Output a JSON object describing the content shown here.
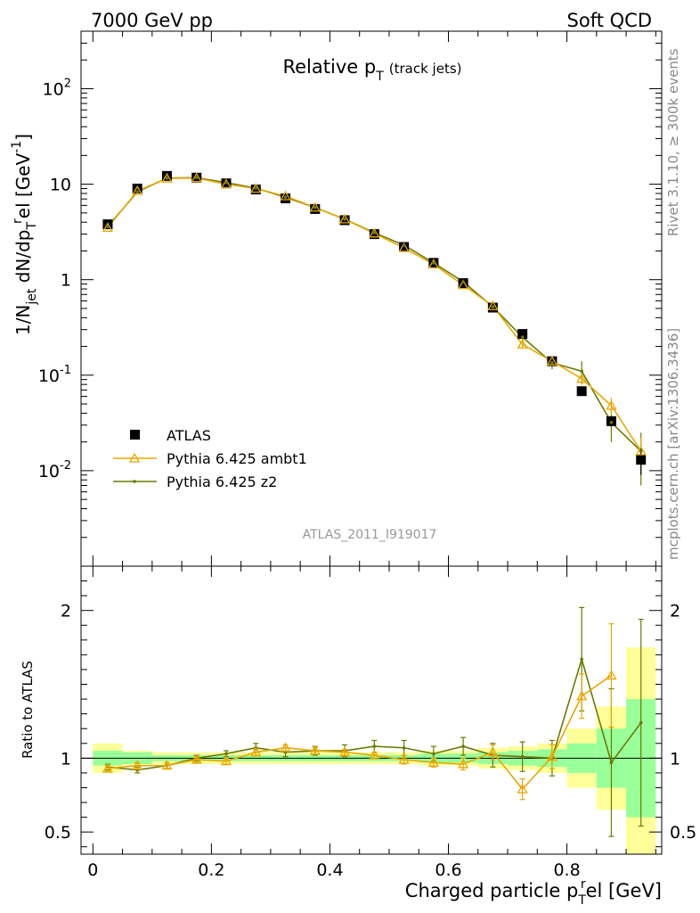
{
  "header": {
    "left": "7000 GeV pp",
    "right": "Soft QCD"
  },
  "side": {
    "rivet": "Rivet 3.1.10, ≥ 300k events",
    "mcplots": "mcplots.cern.ch [arXiv:1306.3436]"
  },
  "chart_data": {
    "type": "line",
    "title": "Relative p",
    "title_sub": "T",
    "title_suffix": "(track jets)",
    "analysis_id": "ATLAS_2011_I919017",
    "xlabel": "Charged particle p",
    "xlabel_sub": "T",
    "xlabel_sup": "r",
    "xlabel_suffix": "el [GeV]",
    "ylabel_parts": [
      "1/N",
      "jet",
      " dN/dp",
      "T",
      "r",
      "el [GeV",
      "-1",
      "]"
    ],
    "ratio_ylabel": "Ratio to ATLAS",
    "xlim": [
      -0.02,
      0.96
    ],
    "ylim": [
      0.001,
      400
    ],
    "yscale": "log",
    "ratio_ylim": [
      0.35,
      2.3
    ],
    "x_ticks": [
      0,
      0.2,
      0.4,
      0.6,
      0.8
    ],
    "x_tick_labels": [
      "0",
      "0.2",
      "0.4",
      "0.6",
      "0.8"
    ],
    "y_tick_labels": [
      {
        "value": 0.01,
        "base": "10",
        "exp": "-2"
      },
      {
        "value": 0.1,
        "base": "10",
        "exp": "-1"
      },
      {
        "value": 1,
        "base": "1",
        "exp": ""
      },
      {
        "value": 10,
        "base": "10",
        "exp": ""
      },
      {
        "value": 100,
        "base": "10",
        "exp": "2"
      }
    ],
    "ratio_ticks": [
      {
        "value": 0.5,
        "label": "0.5"
      },
      {
        "value": 1,
        "label": "1"
      },
      {
        "value": 2,
        "label": "2"
      }
    ],
    "bin_edges": [
      0,
      0.05,
      0.1,
      0.15,
      0.2,
      0.25,
      0.3,
      0.35,
      0.4,
      0.45,
      0.5,
      0.55,
      0.6,
      0.65,
      0.7,
      0.75,
      0.8,
      0.85,
      0.9,
      0.95
    ],
    "x": [
      0.025,
      0.075,
      0.125,
      0.175,
      0.225,
      0.275,
      0.325,
      0.375,
      0.425,
      0.475,
      0.525,
      0.575,
      0.625,
      0.675,
      0.725,
      0.775,
      0.825,
      0.875,
      0.925
    ],
    "legend": {
      "placement": "lower-left",
      "entries": [
        "ATLAS",
        "Pythia 6.425 ambt1",
        "Pythia 6.425 z2"
      ]
    },
    "series": [
      {
        "name": "ATLAS",
        "color": "#000000",
        "marker": "square",
        "values": [
          3.8,
          9.0,
          12.2,
          11.7,
          10.2,
          8.8,
          7.1,
          5.5,
          4.2,
          3.0,
          2.2,
          1.5,
          0.92,
          0.51,
          0.27,
          0.14,
          0.068,
          0.033,
          0.013
        ],
        "errors": [
          0.1,
          0.2,
          0.3,
          0.3,
          0.25,
          0.2,
          0.18,
          0.14,
          0.1,
          0.08,
          0.06,
          0.04,
          0.03,
          0.02,
          0.01,
          0.008,
          0.005,
          0.004,
          0.004
        ],
        "ratio_band_stat": [
          0.05,
          0.04,
          0.02,
          0.02,
          0.02,
          0.02,
          0.02,
          0.02,
          0.02,
          0.02,
          0.02,
          0.03,
          0.03,
          0.04,
          0.05,
          0.06,
          0.1,
          0.2,
          0.4
        ],
        "ratio_band_total": [
          0.1,
          0.05,
          0.04,
          0.04,
          0.04,
          0.04,
          0.04,
          0.04,
          0.04,
          0.04,
          0.04,
          0.05,
          0.05,
          0.07,
          0.08,
          0.1,
          0.2,
          0.35,
          0.75
        ]
      },
      {
        "name": "Pythia 6.425 ambt1",
        "color": "#e8a800",
        "marker": "triangle",
        "values": [
          3.5,
          8.5,
          11.5,
          11.6,
          10.0,
          9.0,
          7.5,
          5.7,
          4.3,
          3.05,
          2.15,
          1.45,
          0.88,
          0.53,
          0.21,
          0.14,
          0.092,
          0.048,
          0.016
        ],
        "errors": [
          0.05,
          0.1,
          0.1,
          0.1,
          0.1,
          0.1,
          0.08,
          0.06,
          0.05,
          0.04,
          0.03,
          0.02,
          0.02,
          0.02,
          0.02,
          0.015,
          0.012,
          0.01,
          0.006
        ],
        "ratio": [
          0.93,
          0.95,
          0.95,
          0.99,
          0.98,
          1.04,
          1.07,
          1.05,
          1.04,
          1.02,
          0.99,
          0.97,
          0.96,
          1.04,
          0.79,
          1.01,
          1.42,
          1.56,
          null
        ],
        "ratio_err": [
          0.02,
          0.02,
          0.02,
          0.02,
          0.02,
          0.02,
          0.02,
          0.02,
          0.02,
          0.02,
          0.03,
          0.03,
          0.04,
          0.05,
          0.07,
          0.08,
          0.15,
          0.35,
          null
        ]
      },
      {
        "name": "Pythia 6.425 z2",
        "color": "#6b7a00",
        "marker": "dot",
        "values": [
          3.6,
          8.3,
          11.6,
          11.7,
          10.4,
          9.1,
          7.3,
          5.7,
          4.3,
          3.1,
          2.3,
          1.5,
          0.95,
          0.52,
          0.25,
          0.135,
          0.11,
          0.032,
          0.016
        ],
        "errors": [
          0.05,
          0.1,
          0.1,
          0.1,
          0.1,
          0.1,
          0.08,
          0.06,
          0.05,
          0.04,
          0.03,
          0.02,
          0.02,
          0.02,
          0.05,
          0.02,
          0.03,
          0.012,
          0.009
        ],
        "ratio": [
          0.94,
          0.92,
          0.95,
          1.0,
          1.03,
          1.07,
          1.04,
          1.05,
          1.05,
          1.08,
          1.07,
          1.03,
          1.08,
          1.02,
          1.01,
          1.0,
          1.67,
          0.97,
          1.24
        ],
        "ratio_err": [
          0.02,
          0.02,
          0.02,
          0.02,
          0.02,
          0.03,
          0.03,
          0.03,
          0.04,
          0.04,
          0.05,
          0.05,
          0.06,
          0.08,
          0.1,
          0.12,
          0.35,
          0.5,
          0.7
        ]
      }
    ]
  }
}
